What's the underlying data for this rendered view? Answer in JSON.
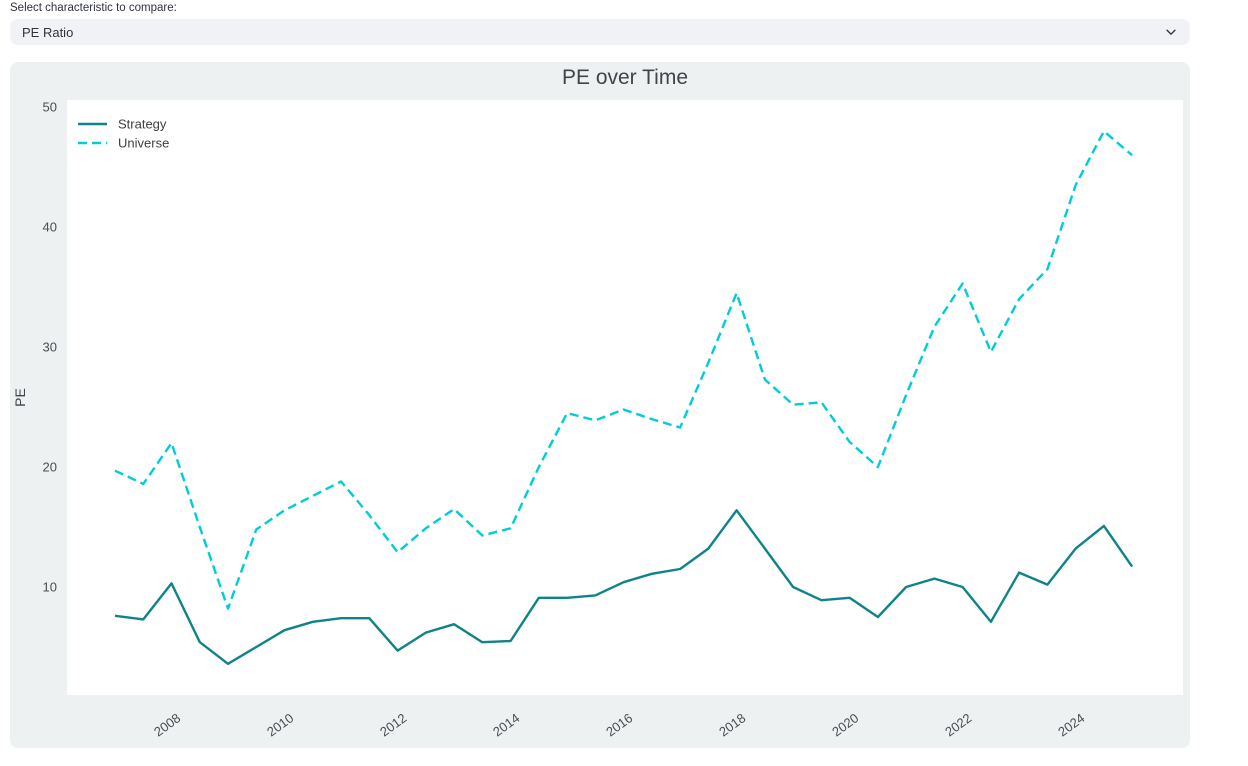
{
  "form": {
    "label": "Select characteristic to compare:",
    "select": {
      "value": "PE Ratio",
      "chevron_icon": "chevron-down"
    }
  },
  "colors": {
    "page_background": "#ffffff",
    "select_background": "#f0f2f6",
    "card_background": "#edf1f2",
    "plot_background": "#ffffff",
    "text_dark": "#31333f",
    "axis_text": "#4a4d52",
    "title_text": "#41444a"
  },
  "chart_data": {
    "type": "line",
    "title": "PE over Time",
    "xlabel": "",
    "ylabel": "PE",
    "grid": false,
    "legend_position": "top-left",
    "xlim": [
      2006.15,
      2025.9
    ],
    "ylim": [
      1.0,
      50.6
    ],
    "yticks": [
      10,
      20,
      30,
      40,
      50
    ],
    "xticks": [
      2008,
      2010,
      2012,
      2014,
      2016,
      2018,
      2020,
      2022,
      2024
    ],
    "xtick_labels": [
      "2008",
      "2010",
      "2012",
      "2014",
      "2016",
      "2018",
      "2020",
      "2022",
      "2024"
    ],
    "x": [
      2007.0,
      2007.5,
      2008.0,
      2008.5,
      2009.0,
      2009.5,
      2010.0,
      2010.5,
      2011.0,
      2011.5,
      2012.0,
      2012.5,
      2013.0,
      2013.5,
      2014.0,
      2014.5,
      2015.0,
      2015.5,
      2016.0,
      2016.5,
      2017.0,
      2017.5,
      2018.0,
      2018.5,
      2019.0,
      2019.5,
      2020.0,
      2020.5,
      2021.0,
      2021.5,
      2022.0,
      2022.5,
      2023.0,
      2023.5,
      2024.0,
      2024.5,
      2025.0
    ],
    "series": [
      {
        "name": "Strategy",
        "color": "#0e8488",
        "dash": "solid",
        "values": [
          7.6,
          7.3,
          10.3,
          5.4,
          3.6,
          5.0,
          6.4,
          7.1,
          7.4,
          7.4,
          4.7,
          6.2,
          6.9,
          5.4,
          5.5,
          9.1,
          9.1,
          9.3,
          10.4,
          11.1,
          11.5,
          13.2,
          16.4,
          13.2,
          10.0,
          8.9,
          9.1,
          7.5,
          10.0,
          10.7,
          10.0,
          7.1,
          11.2,
          10.2,
          13.2,
          15.1,
          11.7
        ]
      },
      {
        "name": "Universe",
        "color": "#00cdd7",
        "dash": "dash",
        "values": [
          19.7,
          18.6,
          22.0,
          15.0,
          8.2,
          14.8,
          16.4,
          17.6,
          18.8,
          16.0,
          12.9,
          14.9,
          16.5,
          14.3,
          14.9,
          20.0,
          24.5,
          23.9,
          24.8,
          24.0,
          23.3,
          28.7,
          34.5,
          27.3,
          25.2,
          25.4,
          22.1,
          20.0,
          26.0,
          31.7,
          35.3,
          29.6,
          34.0,
          36.5,
          43.5,
          48.0,
          46.0
        ]
      }
    ]
  }
}
